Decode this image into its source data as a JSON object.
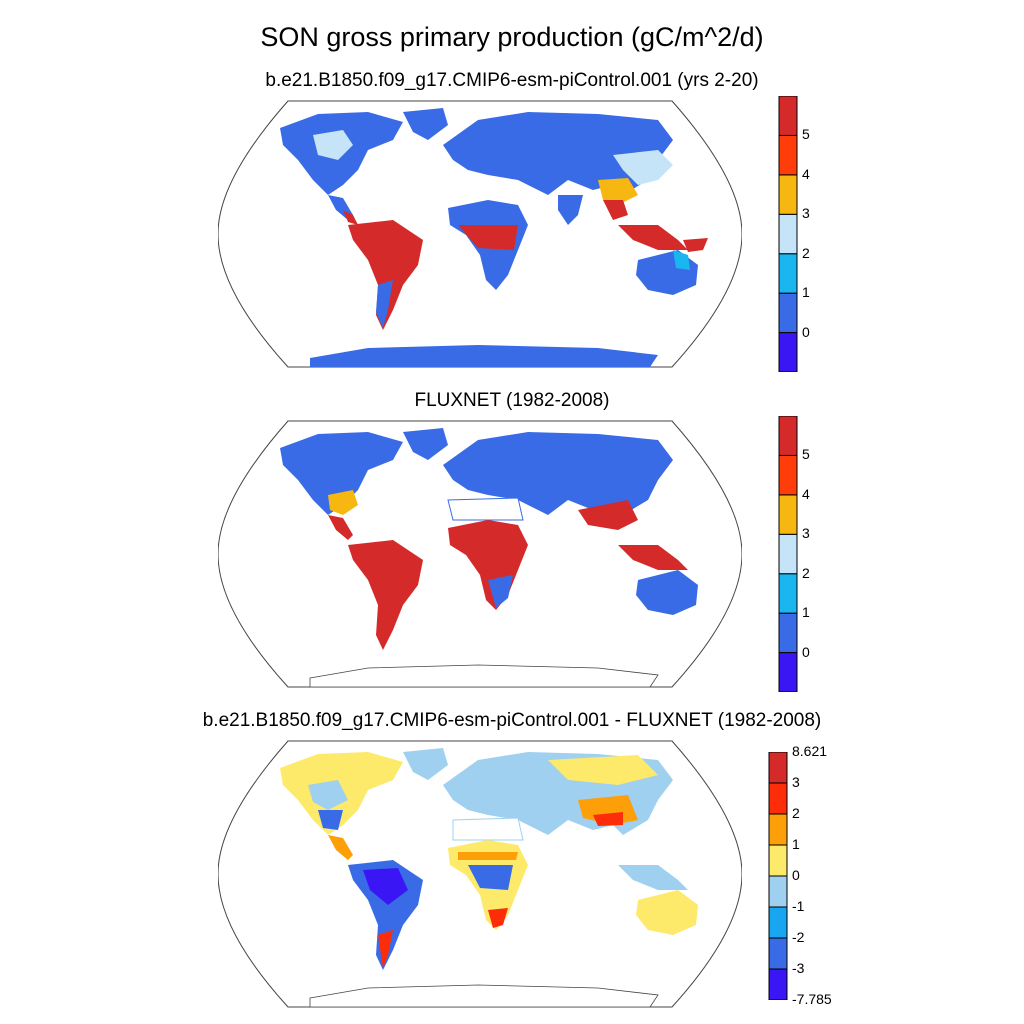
{
  "main_title": "SON gross primary production (gC/m^2/d)",
  "panels": [
    {
      "title": "b.e21.B1850.f09_g17.CMIP6-esm-piControl.001 (yrs 2-20)",
      "colorbar": {
        "colors": [
          "#3b16f5",
          "#3a6be6",
          "#19b6f0",
          "#c6e4f7",
          "#f7b711",
          "#ff3d0a",
          "#d42a2a"
        ],
        "labels": [
          "0",
          "1",
          "2",
          "3",
          "4",
          "5"
        ]
      }
    },
    {
      "title": "FLUXNET (1982-2008)",
      "colorbar": {
        "colors": [
          "#3b16f5",
          "#3a6be6",
          "#19b6f0",
          "#c6e4f7",
          "#f7b711",
          "#ff3d0a",
          "#d42a2a"
        ],
        "labels": [
          "0",
          "1",
          "2",
          "3",
          "4",
          "5"
        ]
      }
    },
    {
      "title": "b.e21.B1850.f09_g17.CMIP6-esm-piControl.001 - FLUXNET (1982-2008)",
      "colorbar": {
        "colors": [
          "#3b16f5",
          "#3a6be6",
          "#19a6f0",
          "#9fd0f0",
          "#fde96a",
          "#fd9f08",
          "#fd2c09",
          "#d42a2a"
        ],
        "labels": [
          "8.621",
          "3",
          "2",
          "1",
          "0",
          "-1",
          "-2",
          "-3",
          "-7.785"
        ]
      }
    }
  ],
  "land_palette": {
    "ocean": "#ffffff",
    "outline": "#1a1a1a"
  }
}
